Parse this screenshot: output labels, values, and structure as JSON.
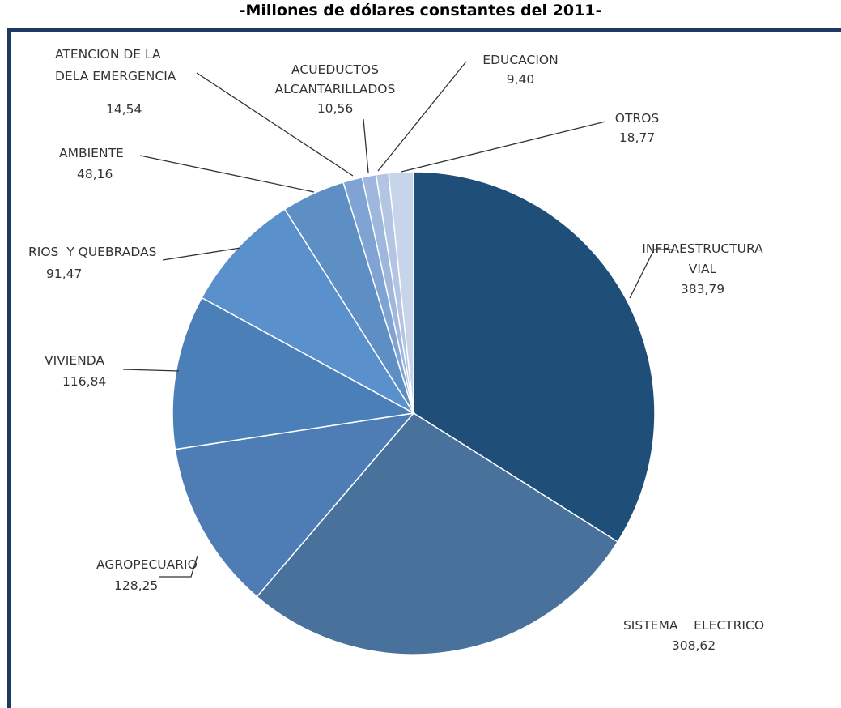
{
  "title": "-Millones de dólares constantes del 2011-",
  "colors": {
    "frame": "#1f3864",
    "slices": [
      "#1f4e79",
      "#48719c",
      "#4e7db5",
      "#4a7fb8",
      "#5a90cc",
      "#5e8fc4",
      "#7fa3d3",
      "#9fb7dc",
      "#b3c5e3",
      "#c7d4ea",
      "#dde3ef"
    ]
  },
  "chart_data": {
    "type": "pie",
    "title": "-Millones de dólares constantes del 2011-",
    "start_angle_deg": 0,
    "direction": "clockwise",
    "slices": [
      {
        "label_lines": [
          "INFRAESTRUCTURA",
          "VIAL"
        ],
        "value_text": "383,79",
        "value": 383.79
      },
      {
        "label_lines": [
          "SISTEMA    ELECTRICO"
        ],
        "value_text": "308,62",
        "value": 308.62
      },
      {
        "label_lines": [
          "AGROPECUARIO"
        ],
        "value_text": "128,25",
        "value": 128.25
      },
      {
        "label_lines": [
          "VIVIENDA"
        ],
        "value_text": "116,84",
        "value": 116.84
      },
      {
        "label_lines": [
          "RIOS  Y QUEBRADAS"
        ],
        "value_text": "91,47",
        "value": 91.47
      },
      {
        "label_lines": [
          "AMBIENTE"
        ],
        "value_text": "48,16",
        "value": 48.16
      },
      {
        "label_lines": [
          "ATENCION DE LA",
          "DELA EMERGENCIA"
        ],
        "value_text": "14,54",
        "value": 14.54
      },
      {
        "label_lines": [
          "ACUEDUCTOS",
          "ALCANTARILLADOS"
        ],
        "value_text": "10,56",
        "value": 10.56
      },
      {
        "label_lines": [
          "EDUCACION"
        ],
        "value_text": "9,40",
        "value": 9.4
      },
      {
        "label_lines": [
          "OTROS"
        ],
        "value_text": "18,77",
        "value": 18.77
      }
    ]
  }
}
